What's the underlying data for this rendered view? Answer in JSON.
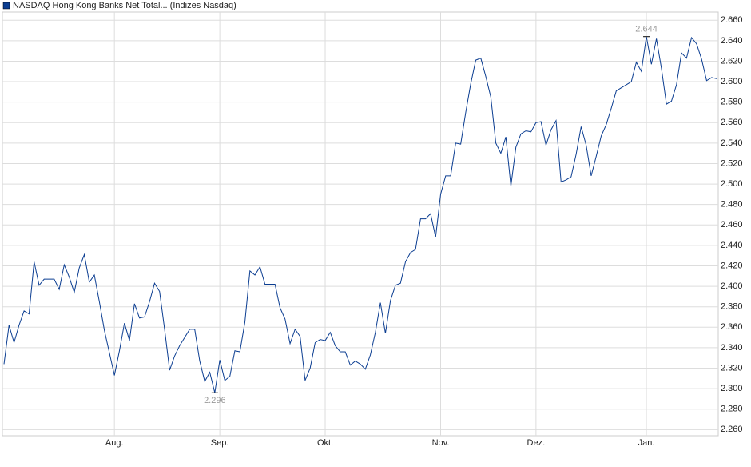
{
  "chart_data": {
    "type": "line",
    "title": "NASDAQ Hong Kong Banks Net Total... (Indizes Nasdaq)",
    "categories": [
      null,
      null,
      null,
      null,
      null,
      null,
      null,
      null,
      null,
      null,
      null,
      null,
      null,
      null,
      null,
      null,
      null,
      null,
      null,
      null,
      null,
      null,
      "Aug.",
      null,
      null,
      null,
      null,
      null,
      null,
      null,
      null,
      null,
      null,
      null,
      null,
      null,
      null,
      null,
      null,
      null,
      null,
      null,
      null,
      "Sep.",
      null,
      null,
      null,
      null,
      null,
      null,
      null,
      null,
      null,
      null,
      null,
      null,
      null,
      null,
      null,
      null,
      null,
      null,
      null,
      null,
      "Okt.",
      null,
      null,
      null,
      null,
      null,
      null,
      null,
      null,
      null,
      null,
      null,
      null,
      null,
      null,
      null,
      null,
      null,
      null,
      null,
      null,
      null,
      null,
      "Nov.",
      null,
      null,
      null,
      null,
      null,
      null,
      null,
      null,
      null,
      null,
      null,
      null,
      null,
      null,
      null,
      null,
      null,
      null,
      "Dez.",
      null,
      null,
      null,
      null,
      null,
      null,
      null,
      null,
      null,
      null,
      null,
      null,
      null,
      null,
      null,
      null,
      null,
      null,
      null,
      null,
      null,
      "Jan.",
      null,
      null,
      null,
      null,
      null,
      null,
      null,
      null,
      null,
      null,
      null,
      null,
      null,
      null
    ],
    "series": [
      {
        "name": "NASDAQ Hong Kong Banks Net Total... (Indizes Nasdaq)",
        "color": "#0b3d91",
        "values": [
          2.324,
          2.362,
          2.345,
          2.362,
          2.376,
          2.373,
          2.424,
          2.401,
          2.407,
          2.407,
          2.407,
          2.397,
          2.421,
          2.409,
          2.394,
          2.418,
          2.431,
          2.404,
          2.411,
          2.385,
          2.357,
          2.335,
          2.313,
          2.337,
          2.364,
          2.347,
          2.383,
          2.369,
          2.37,
          2.385,
          2.403,
          2.395,
          2.358,
          2.318,
          2.332,
          2.342,
          2.35,
          2.358,
          2.358,
          2.327,
          2.307,
          2.316,
          2.296,
          2.328,
          2.308,
          2.312,
          2.337,
          2.336,
          2.365,
          2.415,
          2.411,
          2.419,
          2.402,
          2.402,
          2.402,
          2.379,
          2.368,
          2.344,
          2.358,
          2.351,
          2.308,
          2.32,
          2.345,
          2.348,
          2.347,
          2.355,
          2.342,
          2.336,
          2.336,
          2.323,
          2.327,
          2.324,
          2.319,
          2.333,
          2.355,
          2.384,
          2.354,
          2.386,
          2.401,
          2.403,
          2.424,
          2.433,
          2.436,
          2.466,
          2.466,
          2.471,
          2.448,
          2.49,
          2.508,
          2.508,
          2.54,
          2.539,
          2.57,
          2.598,
          2.621,
          2.623,
          2.605,
          2.585,
          2.54,
          2.53,
          2.546,
          2.498,
          2.536,
          2.549,
          2.552,
          2.551,
          2.56,
          2.561,
          2.538,
          2.553,
          2.562,
          2.502,
          2.504,
          2.507,
          2.529,
          2.556,
          2.538,
          2.508,
          2.527,
          2.547,
          2.558,
          2.574,
          2.591,
          2.594,
          2.597,
          2.6,
          2.619,
          2.61,
          2.644,
          2.617,
          2.642,
          2.613,
          2.578,
          2.581,
          2.597,
          2.628,
          2.623,
          2.643,
          2.637,
          2.622,
          2.601,
          2.604,
          2.603
        ]
      }
    ],
    "min_label": "2.296",
    "max_label": "2.644",
    "ylim": [
      2.254,
      2.668
    ],
    "yticks": [
      {
        "value": 2.26,
        "label": "2.260"
      },
      {
        "value": 2.28,
        "label": "2.280"
      },
      {
        "value": 2.3,
        "label": "2.300"
      },
      {
        "value": 2.32,
        "label": "2.320"
      },
      {
        "value": 2.34,
        "label": "2.340"
      },
      {
        "value": 2.36,
        "label": "2.360"
      },
      {
        "value": 2.38,
        "label": "2.380"
      },
      {
        "value": 2.4,
        "label": "2.400"
      },
      {
        "value": 2.42,
        "label": "2.420"
      },
      {
        "value": 2.44,
        "label": "2.440"
      },
      {
        "value": 2.46,
        "label": "2.460"
      },
      {
        "value": 2.48,
        "label": "2.480"
      },
      {
        "value": 2.5,
        "label": "2.500"
      },
      {
        "value": 2.52,
        "label": "2.520"
      },
      {
        "value": 2.54,
        "label": "2.540"
      },
      {
        "value": 2.56,
        "label": "2.560"
      },
      {
        "value": 2.58,
        "label": "2.580"
      },
      {
        "value": 2.6,
        "label": "2.600"
      },
      {
        "value": 2.62,
        "label": "2.620"
      },
      {
        "value": 2.64,
        "label": "2.640"
      },
      {
        "value": 2.66,
        "label": "2.660"
      }
    ],
    "grid": true
  }
}
